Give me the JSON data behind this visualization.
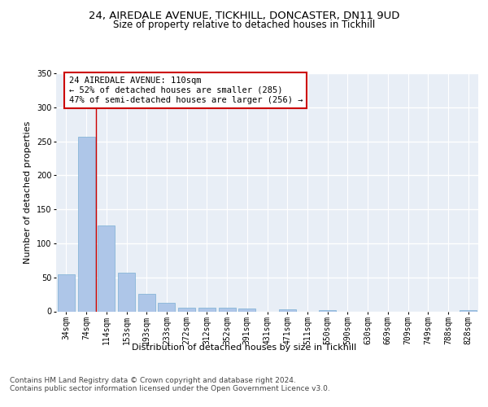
{
  "title1": "24, AIREDALE AVENUE, TICKHILL, DONCASTER, DN11 9UD",
  "title2": "Size of property relative to detached houses in Tickhill",
  "xlabel": "Distribution of detached houses by size in Tickhill",
  "ylabel": "Number of detached properties",
  "bar_categories": [
    "34sqm",
    "74sqm",
    "114sqm",
    "153sqm",
    "193sqm",
    "233sqm",
    "272sqm",
    "312sqm",
    "352sqm",
    "391sqm",
    "431sqm",
    "471sqm",
    "511sqm",
    "550sqm",
    "590sqm",
    "630sqm",
    "669sqm",
    "709sqm",
    "749sqm",
    "788sqm",
    "828sqm"
  ],
  "bar_values": [
    54,
    257,
    126,
    57,
    26,
    13,
    5,
    5,
    5,
    4,
    0,
    3,
    0,
    2,
    0,
    0,
    0,
    0,
    0,
    0,
    2
  ],
  "bar_color": "#aec6e8",
  "bar_edge_color": "#7aafd4",
  "vline_x_idx": 2,
  "vline_color": "#cc0000",
  "annotation_text": "24 AIREDALE AVENUE: 110sqm\n← 52% of detached houses are smaller (285)\n47% of semi-detached houses are larger (256) →",
  "annotation_box_color": "#ffffff",
  "annotation_box_edge": "#cc0000",
  "ylim": [
    0,
    350
  ],
  "yticks": [
    0,
    50,
    100,
    150,
    200,
    250,
    300,
    350
  ],
  "background_color": "#e8eef6",
  "grid_color": "#ffffff",
  "footer": "Contains HM Land Registry data © Crown copyright and database right 2024.\nContains public sector information licensed under the Open Government Licence v3.0.",
  "title1_fontsize": 9.5,
  "title2_fontsize": 8.5,
  "xlabel_fontsize": 8,
  "ylabel_fontsize": 8,
  "tick_fontsize": 7,
  "footer_fontsize": 6.5,
  "annot_fontsize": 7.5
}
